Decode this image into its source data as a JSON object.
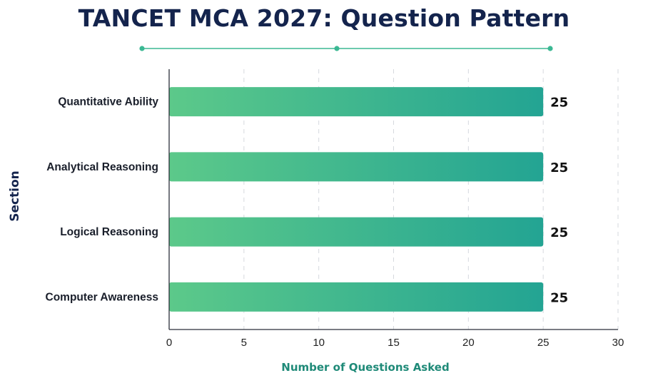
{
  "chart_data": {
    "type": "bar",
    "orientation": "horizontal",
    "title": "TANCET MCA 2027: Question Pattern",
    "xlabel": "Number of Questions Asked",
    "ylabel": "Section",
    "categories": [
      "Quantitative Ability",
      "Analytical Reasoning",
      "Logical Reasoning",
      "Computer Awareness"
    ],
    "values": [
      25,
      25,
      25,
      25
    ],
    "data_labels": [
      "25",
      "25",
      "25",
      "25"
    ],
    "xlim": [
      0,
      30
    ],
    "xticks": [
      "0",
      "5",
      "10",
      "15",
      "20",
      "25",
      "30"
    ],
    "grid": "vertical dashed",
    "colors": {
      "bar_start": "#5cc98a",
      "bar_end": "#23a493",
      "title": "#14244d",
      "xlabel": "#1f8a78",
      "decor_line": "#3bb893"
    }
  }
}
